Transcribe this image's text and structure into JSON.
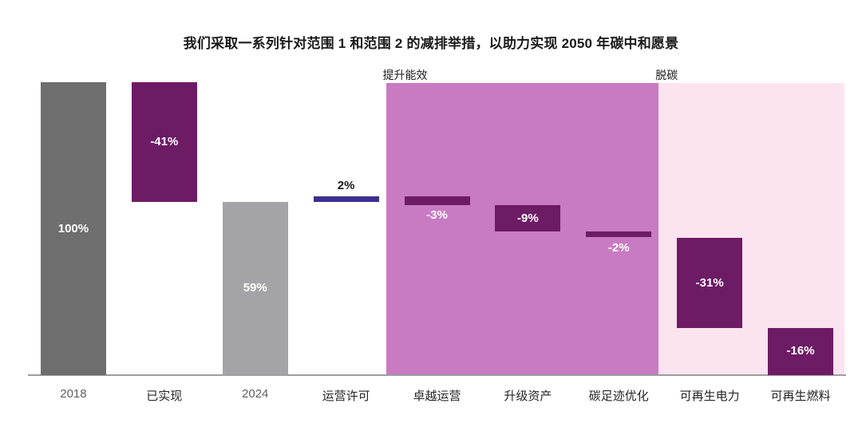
{
  "chart_data": {
    "type": "bar",
    "subtype": "waterfall",
    "title": "我们采取一系列针对范围 1 和范围 2 的减排举措，以助力实现 2050 年碳中和愿景",
    "unit": "%",
    "ylim": [
      0,
      100
    ],
    "grid": false,
    "legend": "none",
    "categories": [
      "2018",
      "已实现",
      "2024",
      "运营许可",
      "卓越运营",
      "升级资产",
      "碳足迹优化",
      "可再生电力",
      "可再生燃料"
    ],
    "bars": [
      {
        "name": "bar-2018",
        "category": "2018",
        "label": "100%",
        "value": 100,
        "from": 0,
        "to": 100,
        "color": "gray_dark",
        "label_color": "white",
        "label_pos": "inside",
        "category_muted": true
      },
      {
        "name": "bar-achieved",
        "category": "已实现",
        "label": "-41%",
        "value": -41,
        "from": 100,
        "to": 59,
        "color": "purple_dark",
        "label_color": "white",
        "label_pos": "inside",
        "category_muted": false
      },
      {
        "name": "bar-2024",
        "category": "2024",
        "label": "59%",
        "value": 59,
        "from": 0,
        "to": 59,
        "color": "gray_light",
        "label_color": "white",
        "label_pos": "inside",
        "category_muted": true
      },
      {
        "name": "bar-operating-license",
        "category": "运营许可",
        "label": "2%",
        "value": 2,
        "from": 59,
        "to": 61,
        "color": "indigo",
        "label_color": "black",
        "label_pos": "above",
        "category_muted": false
      },
      {
        "name": "bar-operational-excellence",
        "category": "卓越运营",
        "label": "-3%",
        "value": -3,
        "from": 61,
        "to": 58,
        "color": "purple_dark",
        "label_color": "white",
        "label_pos": "below",
        "category_muted": false
      },
      {
        "name": "bar-asset-upgrade",
        "category": "升级资产",
        "label": "-9%",
        "value": -9,
        "from": 58,
        "to": 49,
        "color": "purple_dark",
        "label_color": "white",
        "label_pos": "inside",
        "category_muted": false
      },
      {
        "name": "bar-carbon-footprint-optimization",
        "category": "碳足迹优化",
        "label": "-2%",
        "value": -2,
        "from": 49,
        "to": 47,
        "color": "purple_dark",
        "label_color": "white",
        "label_pos": "below",
        "category_muted": false
      },
      {
        "name": "bar-renewable-electricity",
        "category": "可再生电力",
        "label": "-31%",
        "value": -31,
        "from": 47,
        "to": 16,
        "color": "purple_dark",
        "label_color": "white",
        "label_pos": "inside",
        "category_muted": false
      },
      {
        "name": "bar-renewable-fuel",
        "category": "可再生燃料",
        "label": "-16%",
        "value": -16,
        "from": 16,
        "to": 0,
        "color": "purple_dark",
        "label_color": "white",
        "label_pos": "inside",
        "category_muted": false
      }
    ],
    "regions": [
      {
        "name": "region-energy-efficiency",
        "label": "提升能效",
        "from_bar": 4,
        "to_bar": 6,
        "color": "orchid"
      },
      {
        "name": "region-decarbonization",
        "label": "脱碳",
        "from_bar": 7,
        "to_bar": 8,
        "color": "pale_pink"
      }
    ],
    "colors": {
      "gray_dark": "#6e6e6e",
      "gray_light": "#a4a4a8",
      "purple_dark": "#6e1b66",
      "indigo": "#3c3191",
      "orchid": "#c87ac2",
      "pale_pink": "#fce3f0",
      "axis": "#9d9d9d",
      "white": "#ffffff",
      "black": "#1a1a1a",
      "category_default": "#262626",
      "category_muted": "#5f5f5f"
    }
  }
}
